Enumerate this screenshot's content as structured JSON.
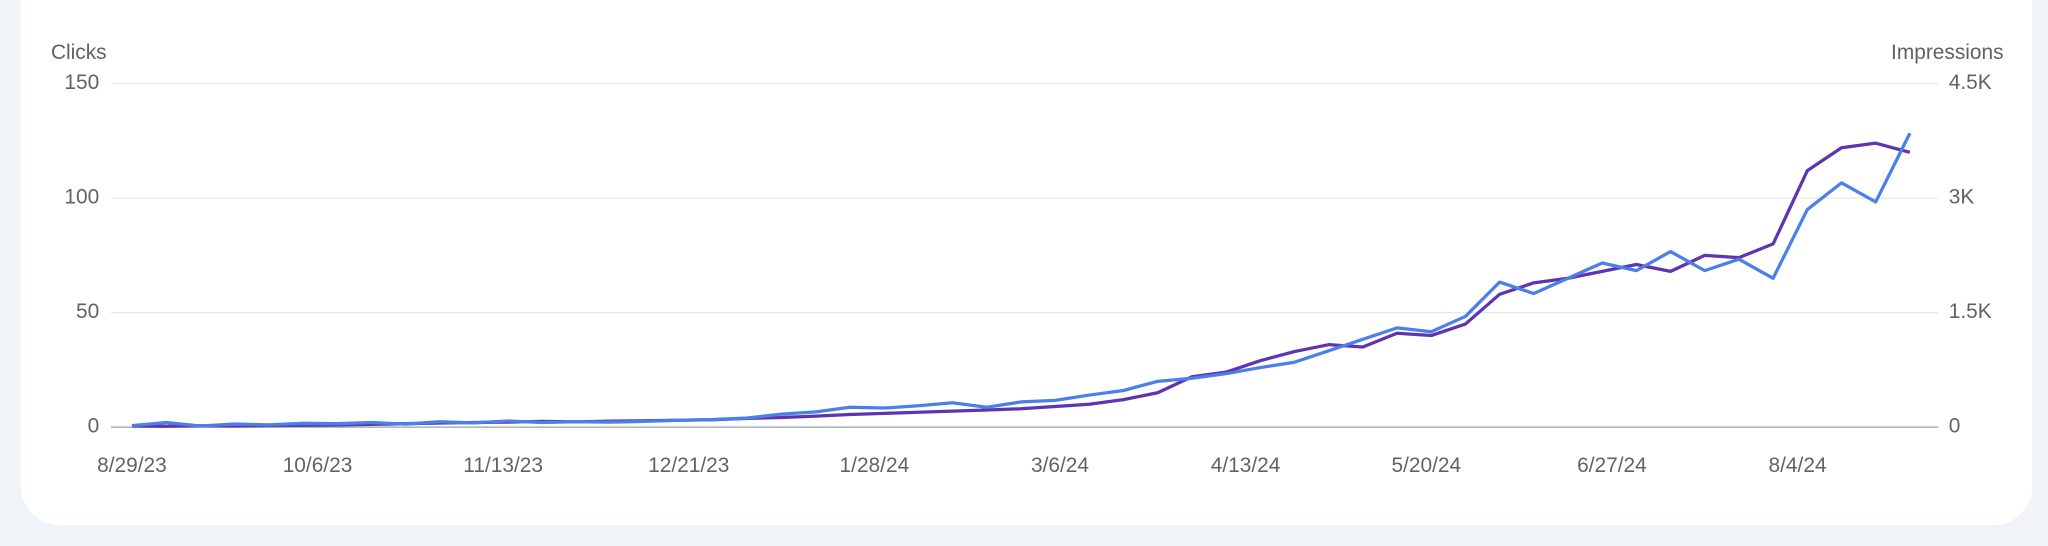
{
  "chart_data": {
    "type": "line",
    "y_label": "Clicks",
    "y2_label": "Impressions",
    "x": [
      "8/29/23",
      "9/5/23",
      "9/12/23",
      "9/19/23",
      "9/26/23",
      "10/3/23",
      "10/10/23",
      "10/17/23",
      "10/24/23",
      "10/31/23",
      "11/7/23",
      "11/14/23",
      "11/21/23",
      "11/28/23",
      "12/5/23",
      "12/12/23",
      "12/19/23",
      "12/26/23",
      "1/2/24",
      "1/9/24",
      "1/16/24",
      "1/23/24",
      "1/30/24",
      "2/6/24",
      "2/13/24",
      "2/20/24",
      "2/27/24",
      "3/5/24",
      "3/12/24",
      "3/19/24",
      "3/26/24",
      "4/2/24",
      "4/9/24",
      "4/16/24",
      "4/23/24",
      "4/30/24",
      "5/7/24",
      "5/14/24",
      "5/21/24",
      "5/28/24",
      "6/4/24",
      "6/11/24",
      "6/18/24",
      "6/25/24",
      "7/2/24",
      "7/9/24",
      "7/16/24",
      "7/23/24",
      "7/30/24",
      "8/6/24",
      "8/13/24",
      "8/20/24",
      "8/27/24"
    ],
    "xlim": [
      "8/29/23",
      "8/28/24"
    ],
    "xticks": [
      "8/29/23",
      "10/6/23",
      "11/13/23",
      "12/21/23",
      "1/28/24",
      "3/6/24",
      "4/13/24",
      "5/20/24",
      "6/27/24",
      "8/4/24"
    ],
    "series": [
      {
        "name": "Clicks",
        "color": "#5e35b1",
        "axis": "y",
        "values": [
          0.5,
          0.4,
          0.6,
          0.5,
          0.7,
          0.8,
          1,
          1.2,
          1.5,
          1.8,
          2,
          2.2,
          2.5,
          2.3,
          2.6,
          2.8,
          3,
          3.2,
          3.8,
          4.2,
          4.8,
          5.5,
          6,
          6.5,
          7,
          7.5,
          8,
          9,
          10,
          12,
          15,
          22,
          24,
          29,
          33,
          36,
          35,
          41,
          40,
          45,
          58,
          63,
          65,
          68,
          71,
          68,
          75,
          74,
          80,
          112,
          122,
          124,
          120
        ]
      },
      {
        "name": "Impressions",
        "color": "#4a80e8",
        "axis": "y2",
        "values": [
          20,
          60,
          15,
          40,
          30,
          50,
          45,
          60,
          40,
          70,
          55,
          80,
          60,
          70,
          65,
          75,
          90,
          100,
          120,
          170,
          200,
          260,
          250,
          280,
          320,
          260,
          330,
          350,
          420,
          480,
          600,
          640,
          700,
          780,
          850,
          1000,
          1150,
          1300,
          1250,
          1450,
          1900,
          1750,
          1950,
          2150,
          2050,
          2300,
          2050,
          2200,
          1950,
          2850,
          3200,
          2950,
          3850
        ]
      }
    ],
    "ylim": [
      0,
      150
    ],
    "yticks": [
      0,
      50,
      100,
      150
    ],
    "y2lim": [
      0,
      4500
    ],
    "y2ticks": [
      0,
      {
        "value": 1500,
        "label": "1.5K"
      },
      {
        "value": 3000,
        "label": "3K"
      },
      {
        "value": 4500,
        "label": "4.5K"
      }
    ],
    "grid": true
  }
}
